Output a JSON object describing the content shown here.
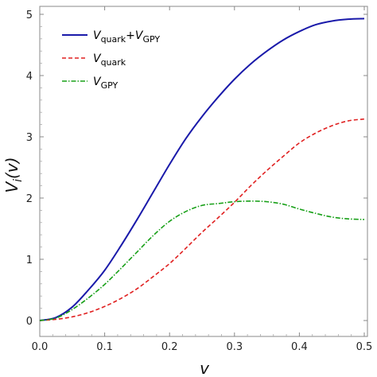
{
  "chart_data": {
    "type": "line",
    "title": "",
    "xlabel": "v",
    "ylabel": "V_i(v)",
    "ylabel_parts": {
      "main": "V",
      "sub": "i",
      "rest": "(v)"
    },
    "xlim": [
      0,
      0.5
    ],
    "ylim": [
      0,
      5
    ],
    "xticks": [
      "0.0",
      "0.1",
      "0.2",
      "0.3",
      "0.4",
      "0.5"
    ],
    "xtick_values": [
      0,
      0.1,
      0.2,
      0.3,
      0.4,
      0.5
    ],
    "yticks": [
      "0",
      "1",
      "2",
      "3",
      "4",
      "5"
    ],
    "ytick_values": [
      0,
      1,
      2,
      3,
      4,
      5
    ],
    "grid": false,
    "legend_position": "top-left",
    "x": [
      0.0,
      0.025,
      0.05,
      0.075,
      0.1,
      0.125,
      0.15,
      0.175,
      0.2,
      0.225,
      0.25,
      0.275,
      0.3,
      0.325,
      0.35,
      0.375,
      0.4,
      0.425,
      0.45,
      0.475,
      0.5
    ],
    "series": [
      {
        "legend": {
          "main": "V",
          "sub": "quark",
          "plus": "+",
          "main2": "V",
          "sub2": "GPY"
        },
        "color": "#1a1aaa",
        "dash": "solid",
        "values": [
          0.0,
          0.05,
          0.22,
          0.5,
          0.82,
          1.22,
          1.65,
          2.1,
          2.55,
          2.97,
          3.33,
          3.65,
          3.94,
          4.19,
          4.4,
          4.58,
          4.72,
          4.83,
          4.89,
          4.92,
          4.93
        ]
      },
      {
        "legend": {
          "main": "V",
          "sub": "quark"
        },
        "color": "#e02020",
        "dash": "dashed",
        "values": [
          0.0,
          0.02,
          0.06,
          0.13,
          0.23,
          0.36,
          0.52,
          0.72,
          0.93,
          1.18,
          1.44,
          1.68,
          1.93,
          2.2,
          2.45,
          2.68,
          2.9,
          3.06,
          3.18,
          3.26,
          3.29
        ]
      },
      {
        "legend": {
          "main": "V",
          "sub": "GPY"
        },
        "color": "#18a018",
        "dash": "dashdot",
        "values": [
          0.0,
          0.04,
          0.18,
          0.37,
          0.59,
          0.85,
          1.12,
          1.39,
          1.62,
          1.78,
          1.88,
          1.91,
          1.94,
          1.95,
          1.94,
          1.9,
          1.82,
          1.75,
          1.69,
          1.66,
          1.65
        ]
      }
    ]
  }
}
